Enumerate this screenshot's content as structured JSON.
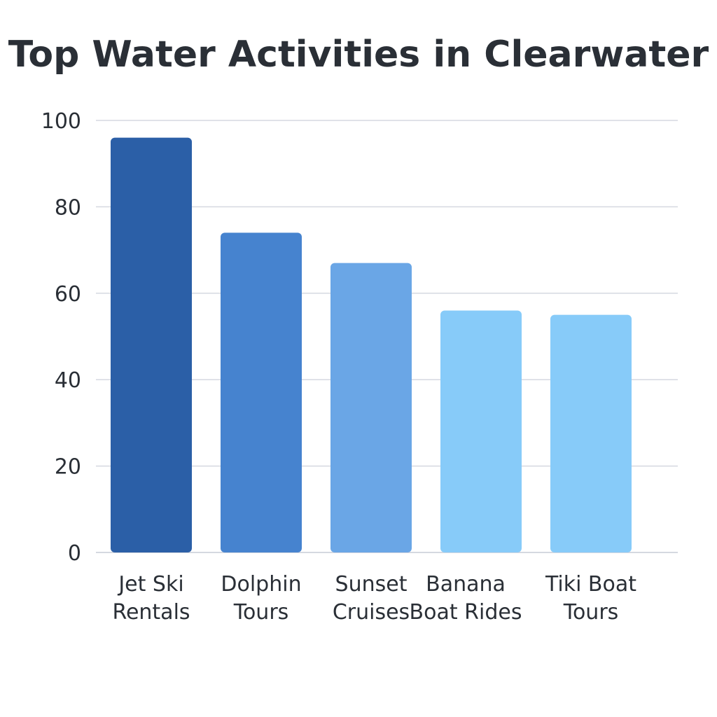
{
  "chart_data": {
    "type": "bar",
    "title": "Top Water Activities in Clearwater",
    "xlabel": "",
    "ylabel": "",
    "ylim": [
      0,
      100
    ],
    "yticks": [
      0,
      20,
      40,
      60,
      80,
      100
    ],
    "grid": true,
    "categories": [
      [
        "Jet Ski",
        "Rentals"
      ],
      [
        "Dolphin",
        "Tours"
      ],
      [
        "Sunset",
        "Cruises"
      ],
      [
        "Banana",
        "Boat Rides"
      ],
      [
        "Tiki Boat",
        "Tours"
      ]
    ],
    "values": [
      96,
      74,
      67,
      56,
      55
    ],
    "colors": [
      "#2b5fa7",
      "#4683cf",
      "#6aa6e6",
      "#87cbf9",
      "#87cbf9"
    ],
    "grid_color": "#d5d8e0",
    "text_color": "#2a2f36"
  }
}
